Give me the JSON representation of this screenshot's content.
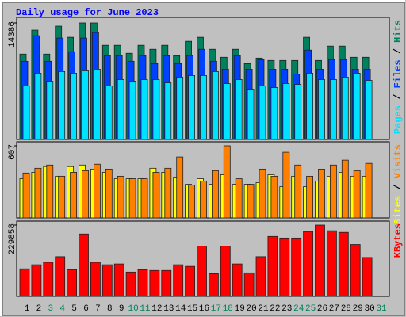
{
  "title": "Daily usage for June 2023",
  "categories": [
    "1",
    "2",
    "3",
    "4",
    "5",
    "6",
    "7",
    "8",
    "9",
    "10",
    "11",
    "12",
    "13",
    "14",
    "15",
    "16",
    "17",
    "18",
    "19",
    "20",
    "21",
    "22",
    "23",
    "24",
    "25",
    "26",
    "27",
    "28",
    "29",
    "30",
    "31"
  ],
  "category_colors": [
    "#000000",
    "#000000",
    "#00805c",
    "#00805c",
    "#000000",
    "#000000",
    "#000000",
    "#000000",
    "#000000",
    "#00805c",
    "#00805c",
    "#000000",
    "#000000",
    "#000000",
    "#000000",
    "#000000",
    "#00805c",
    "#00805c",
    "#000000",
    "#000000",
    "#000000",
    "#000000",
    "#000000",
    "#00805c",
    "#00805c",
    "#000000",
    "#000000",
    "#000000",
    "#000000",
    "#000000",
    "#00805c"
  ],
  "legend_separator": " / ",
  "chart_data": [
    {
      "type": "bar",
      "ylim": [
        0,
        14386
      ],
      "yticks": [
        14386
      ],
      "legend_reversed": true,
      "series": [
        {
          "name": "Hits",
          "color": "#00805c",
          "values": [
            10543,
            13499,
            10543,
            13992,
            12612,
            14386,
            14386,
            11627,
            11627,
            10642,
            11627,
            11134,
            11627,
            10346,
            12120,
            12612,
            11134,
            10149,
            11134,
            9361,
            10050,
            9755,
            9755,
            9755,
            12612,
            9755,
            11528,
            11528,
            10149,
            10149,
            null
          ]
        },
        {
          "name": "Files",
          "color": "#0040ff",
          "values": [
            9656,
            12809,
            9656,
            12513,
            10838,
            12513,
            13203,
            10346,
            10346,
            9656,
            10346,
            9361,
            10346,
            9361,
            10346,
            11134,
            9656,
            8671,
            10346,
            8671,
            9853,
            8671,
            8671,
            8079,
            11035,
            8671,
            9853,
            9853,
            8671,
            8671,
            null
          ]
        },
        {
          "name": "Pages",
          "color": "#00e0ff",
          "values": [
            6602,
            8178,
            7193,
            8375,
            8178,
            8572,
            8671,
            6602,
            7390,
            7193,
            7390,
            7390,
            6996,
            7685,
            7882,
            7882,
            8375,
            6897,
            7390,
            6207,
            6602,
            6404,
            6897,
            6799,
            8178,
            7390,
            7390,
            7685,
            8178,
            7291,
            null
          ]
        }
      ]
    },
    {
      "type": "bar",
      "ylim": [
        0,
        607
      ],
      "yticks": [
        607
      ],
      "legend_reversed": false,
      "series": [
        {
          "name": "Sites",
          "color": "#ffff00",
          "values": [
            330,
            384,
            432,
            351,
            432,
            445,
            411,
            384,
            330,
            330,
            330,
            418,
            384,
            344,
            283,
            330,
            283,
            364,
            283,
            283,
            297,
            364,
            263,
            351,
            263,
            310,
            351,
            384,
            351,
            351,
            null
          ]
        },
        {
          "name": "Visits",
          "color": "#ff8000",
          "values": [
            378,
            418,
            445,
            351,
            384,
            398,
            452,
            411,
            351,
            330,
            330,
            384,
            418,
            513,
            277,
            310,
            398,
            607,
            330,
            283,
            411,
            351,
            553,
            445,
            351,
            411,
            445,
            486,
            398,
            459,
            null
          ]
        }
      ]
    },
    {
      "type": "bar",
      "ylim": [
        0,
        229858
      ],
      "yticks": [
        229858
      ],
      "legend_reversed": false,
      "series": [
        {
          "name": "KBytes",
          "color": "#ff0000",
          "values": [
            88808,
            101868,
            109704,
            127988,
            86196,
            201124,
            109704,
            101868,
            104480,
            78360,
            86196,
            83584,
            83584,
            101868,
            96644,
            161944,
            73136,
            161944,
            104480,
            75748,
            127988,
            193288,
            188064,
            188064,
            208960,
            229858,
            211572,
            206348,
            167168,
            125376,
            null
          ]
        }
      ]
    }
  ]
}
